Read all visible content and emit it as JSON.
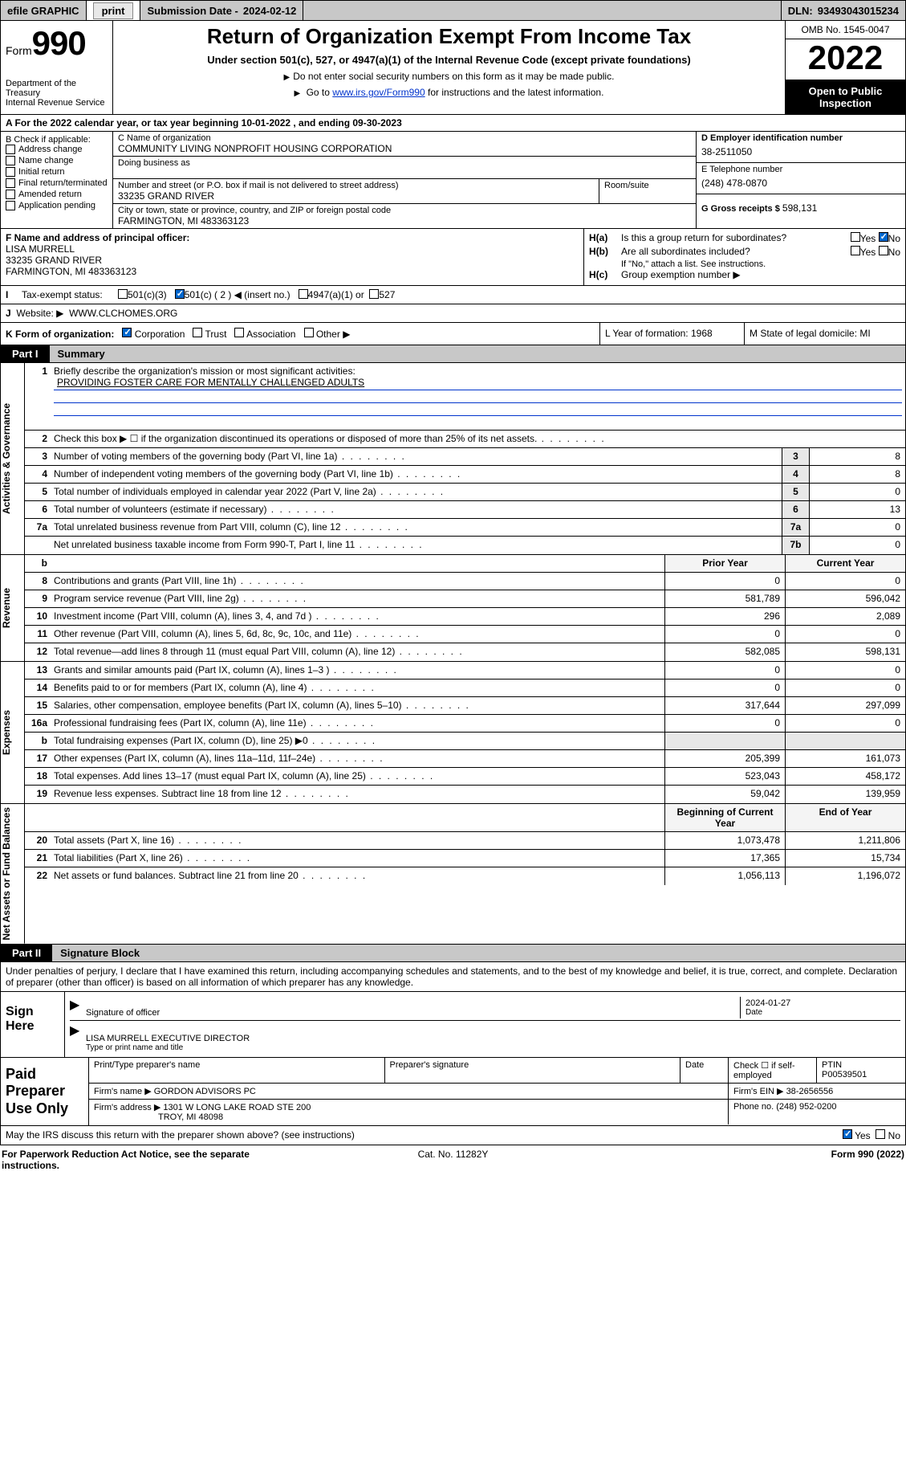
{
  "topstrip": {
    "efile_left": "efile GRAPHIC",
    "print_btn": "print",
    "subdate_label": "Submission Date - ",
    "subdate": "2024-02-12",
    "dln_label": "DLN: ",
    "dln": "93493043015234"
  },
  "header": {
    "form_word": "Form",
    "form_num": "990",
    "dept": "Department of the Treasury\nInternal Revenue Service",
    "title": "Return of Organization Exempt From Income Tax",
    "sub": "Under section 501(c), 527, or 4947(a)(1) of the Internal Revenue Code (except private foundations)",
    "note1": "Do not enter social security numbers on this form as it may be made public.",
    "note2_pre": "Go to ",
    "note2_link": "www.irs.gov/Form990",
    "note2_post": " for instructions and the latest information.",
    "omb": "OMB No. 1545-0047",
    "year": "2022",
    "open": "Open to Public Inspection"
  },
  "rowA": "A For the 2022 calendar year, or tax year beginning 10-01-2022   , and ending 09-30-2023",
  "colB": {
    "title": "B Check if applicable:",
    "items": [
      "Address change",
      "Name change",
      "Initial return",
      "Final return/terminated",
      "Amended return",
      "Application pending"
    ]
  },
  "colC": {
    "name_label": "C Name of organization",
    "name": "COMMUNITY LIVING NONPROFIT HOUSING CORPORATION",
    "dba_label": "Doing business as",
    "dba": "",
    "street_label": "Number and street (or P.O. box if mail is not delivered to street address)",
    "street": "33235 GRAND RIVER",
    "room_label": "Room/suite",
    "city_label": "City or town, state or province, country, and ZIP or foreign postal code",
    "city": "FARMINGTON, MI  483363123"
  },
  "colD": {
    "ein_label": "D Employer identification number",
    "ein": "38-2511050",
    "phone_label": "E Telephone number",
    "phone": "(248) 478-0870",
    "gross_label": "G Gross receipts $ ",
    "gross": "598,131"
  },
  "rowF": {
    "label": "F Name and address of principal officer:",
    "name": "LISA MURRELL",
    "addr1": "33235 GRAND RIVER",
    "addr2": "FARMINGTON, MI  483363123"
  },
  "rowH": {
    "ha_label": "H(a)",
    "ha_text": "Is this a group return for subordinates?",
    "hb_label": "H(b)",
    "hb_text": "Are all subordinates included?",
    "hb_note": "If \"No,\" attach a list. See instructions.",
    "hc_label": "H(c)",
    "hc_text": "Group exemption number ▶",
    "yes": "Yes",
    "no": "No"
  },
  "rowI": {
    "label": "I",
    "text": "Tax-exempt status:",
    "opts": [
      "501(c)(3)",
      "501(c) ( 2 ) ◀ (insert no.)",
      "4947(a)(1) or",
      "527"
    ]
  },
  "rowJ": {
    "label": "J",
    "text": "Website: ▶",
    "val": "WWW.CLCHOMES.ORG"
  },
  "rowK": {
    "label": "K Form of organization:",
    "opts": [
      "Corporation",
      "Trust",
      "Association",
      "Other ▶"
    ]
  },
  "rowL": {
    "label": "L Year of formation: ",
    "val": "1968"
  },
  "rowM": {
    "label": "M State of legal domicile: ",
    "val": "MI"
  },
  "partI": {
    "tag": "Part I",
    "title": "Summary"
  },
  "mission": {
    "num": "1",
    "label": "Briefly describe the organization's mission or most significant activities:",
    "text": "PROVIDING FOSTER CARE FOR MENTALLY CHALLENGED ADULTS"
  },
  "side_labels": {
    "gov": "Activities & Governance",
    "rev": "Revenue",
    "exp": "Expenses",
    "net": "Net Assets or Fund Balances"
  },
  "govrows": [
    {
      "num": "2",
      "desc": "Check this box ▶ ☐  if the organization discontinued its operations or disposed of more than 25% of its net assets.",
      "cell": "",
      "val": ""
    },
    {
      "num": "3",
      "desc": "Number of voting members of the governing body (Part VI, line 1a)",
      "cell": "3",
      "val": "8"
    },
    {
      "num": "4",
      "desc": "Number of independent voting members of the governing body (Part VI, line 1b)",
      "cell": "4",
      "val": "8"
    },
    {
      "num": "5",
      "desc": "Total number of individuals employed in calendar year 2022 (Part V, line 2a)",
      "cell": "5",
      "val": "0"
    },
    {
      "num": "6",
      "desc": "Total number of volunteers (estimate if necessary)",
      "cell": "6",
      "val": "13"
    },
    {
      "num": "7a",
      "desc": "Total unrelated business revenue from Part VIII, column (C), line 12",
      "cell": "7a",
      "val": "0"
    },
    {
      "num": "",
      "desc": "Net unrelated business taxable income from Form 990-T, Part I, line 11",
      "cell": "7b",
      "val": "0"
    }
  ],
  "twocol_hdr": {
    "b": "b",
    "prior": "Prior Year",
    "curr": "Current Year"
  },
  "revrows": [
    {
      "num": "8",
      "desc": "Contributions and grants (Part VIII, line 1h)",
      "prior": "0",
      "curr": "0"
    },
    {
      "num": "9",
      "desc": "Program service revenue (Part VIII, line 2g)",
      "prior": "581,789",
      "curr": "596,042"
    },
    {
      "num": "10",
      "desc": "Investment income (Part VIII, column (A), lines 3, 4, and 7d )",
      "prior": "296",
      "curr": "2,089"
    },
    {
      "num": "11",
      "desc": "Other revenue (Part VIII, column (A), lines 5, 6d, 8c, 9c, 10c, and 11e)",
      "prior": "0",
      "curr": "0"
    },
    {
      "num": "12",
      "desc": "Total revenue—add lines 8 through 11 (must equal Part VIII, column (A), line 12)",
      "prior": "582,085",
      "curr": "598,131"
    }
  ],
  "exprows": [
    {
      "num": "13",
      "desc": "Grants and similar amounts paid (Part IX, column (A), lines 1–3 )",
      "prior": "0",
      "curr": "0"
    },
    {
      "num": "14",
      "desc": "Benefits paid to or for members (Part IX, column (A), line 4)",
      "prior": "0",
      "curr": "0"
    },
    {
      "num": "15",
      "desc": "Salaries, other compensation, employee benefits (Part IX, column (A), lines 5–10)",
      "prior": "317,644",
      "curr": "297,099"
    },
    {
      "num": "16a",
      "desc": "Professional fundraising fees (Part IX, column (A), line 11e)",
      "prior": "0",
      "curr": "0"
    },
    {
      "num": "b",
      "desc": "Total fundraising expenses (Part IX, column (D), line 25) ▶0",
      "prior": "",
      "curr": "",
      "shade": true
    },
    {
      "num": "17",
      "desc": "Other expenses (Part IX, column (A), lines 11a–11d, 11f–24e)",
      "prior": "205,399",
      "curr": "161,073"
    },
    {
      "num": "18",
      "desc": "Total expenses. Add lines 13–17 (must equal Part IX, column (A), line 25)",
      "prior": "523,043",
      "curr": "458,172"
    },
    {
      "num": "19",
      "desc": "Revenue less expenses. Subtract line 18 from line 12",
      "prior": "59,042",
      "curr": "139,959"
    }
  ],
  "net_hdr": {
    "beg": "Beginning of Current Year",
    "end": "End of Year"
  },
  "netrows": [
    {
      "num": "20",
      "desc": "Total assets (Part X, line 16)",
      "prior": "1,073,478",
      "curr": "1,211,806"
    },
    {
      "num": "21",
      "desc": "Total liabilities (Part X, line 26)",
      "prior": "17,365",
      "curr": "15,734"
    },
    {
      "num": "22",
      "desc": "Net assets or fund balances. Subtract line 21 from line 20",
      "prior": "1,056,113",
      "curr": "1,196,072"
    }
  ],
  "partII": {
    "tag": "Part II",
    "title": "Signature Block"
  },
  "perjury": "Under penalties of perjury, I declare that I have examined this return, including accompanying schedules and statements, and to the best of my knowledge and belief, it is true, correct, and complete. Declaration of preparer (other than officer) is based on all information of which preparer has any knowledge.",
  "sign": {
    "label": "Sign Here",
    "sig_label": "Signature of officer",
    "date_label": "Date",
    "date": "2024-01-27",
    "name": "LISA MURRELL  EXECUTIVE DIRECTOR",
    "name_label": "Type or print name and title"
  },
  "paid": {
    "label": "Paid Preparer Use Only",
    "col1": "Print/Type preparer's name",
    "col2": "Preparer's signature",
    "col3": "Date",
    "col4a": "Check ☐ if self-employed",
    "col5_label": "PTIN",
    "col5": "P00539501",
    "firm_label": "Firm's name    ▶ ",
    "firm": "GORDON ADVISORS PC",
    "firm_ein_label": "Firm's EIN ▶ ",
    "firm_ein": "38-2656556",
    "addr_label": "Firm's address ▶ ",
    "addr1": "1301 W LONG LAKE ROAD STE 200",
    "addr2": "TROY, MI  48098",
    "phone_label": "Phone no. ",
    "phone": "(248) 952-0200"
  },
  "mayirs": {
    "text": "May the IRS discuss this return with the preparer shown above? (see instructions)",
    "yes": "Yes",
    "no": "No"
  },
  "footer": {
    "left": "For Paperwork Reduction Act Notice, see the separate instructions.",
    "center": "Cat. No. 11282Y",
    "right": "Form 990 (2022)"
  }
}
